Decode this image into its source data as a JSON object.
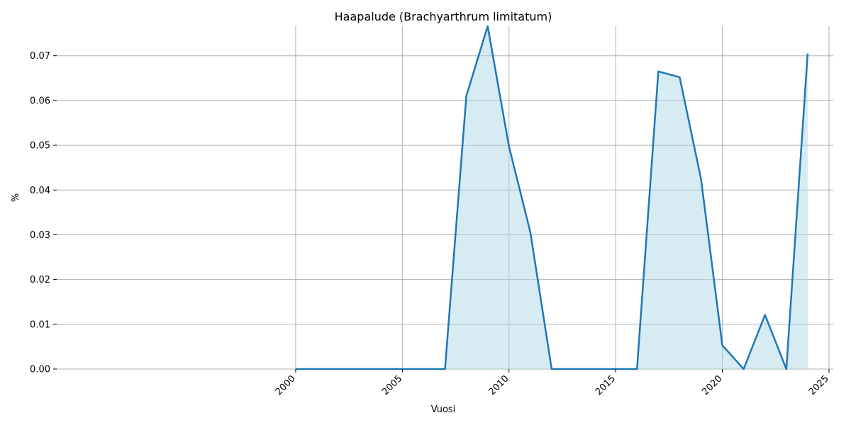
{
  "chart_data": {
    "type": "area",
    "title": "Haapalude (Brachyarthrum limitatum)",
    "xlabel": "Vuosi",
    "ylabel": "%",
    "xlim": [
      1988.8,
      2025.2
    ],
    "ylim": [
      0,
      0.0766
    ],
    "x_ticks": [
      2000,
      2005,
      2010,
      2015,
      2020,
      2025
    ],
    "y_ticks": [
      0.0,
      0.01,
      0.02,
      0.03,
      0.04,
      0.05,
      0.06,
      0.07
    ],
    "x_tick_labels": [
      "2000",
      "2005",
      "2010",
      "2015",
      "2020",
      "2025"
    ],
    "y_tick_labels": [
      "0.00",
      "0.01",
      "0.02",
      "0.03",
      "0.04",
      "0.05",
      "0.06",
      "0.07"
    ],
    "grid": true,
    "legend": "none",
    "line_color": "#1f77b4",
    "fill_color": "#add8e6",
    "x": [
      2000,
      2001,
      2002,
      2003,
      2004,
      2005,
      2006,
      2007,
      2008,
      2009,
      2010,
      2011,
      2012,
      2013,
      2014,
      2015,
      2016,
      2017,
      2018,
      2019,
      2020,
      2021,
      2022,
      2023,
      2024
    ],
    "y": [
      0,
      0,
      0,
      0,
      0,
      0,
      0,
      0,
      0.061,
      0.0766,
      0.0497,
      0.0306,
      0,
      0,
      0,
      0,
      0,
      0.0665,
      0.0652,
      0.0425,
      0.0053,
      0,
      0.0121,
      0,
      0.0705
    ]
  }
}
